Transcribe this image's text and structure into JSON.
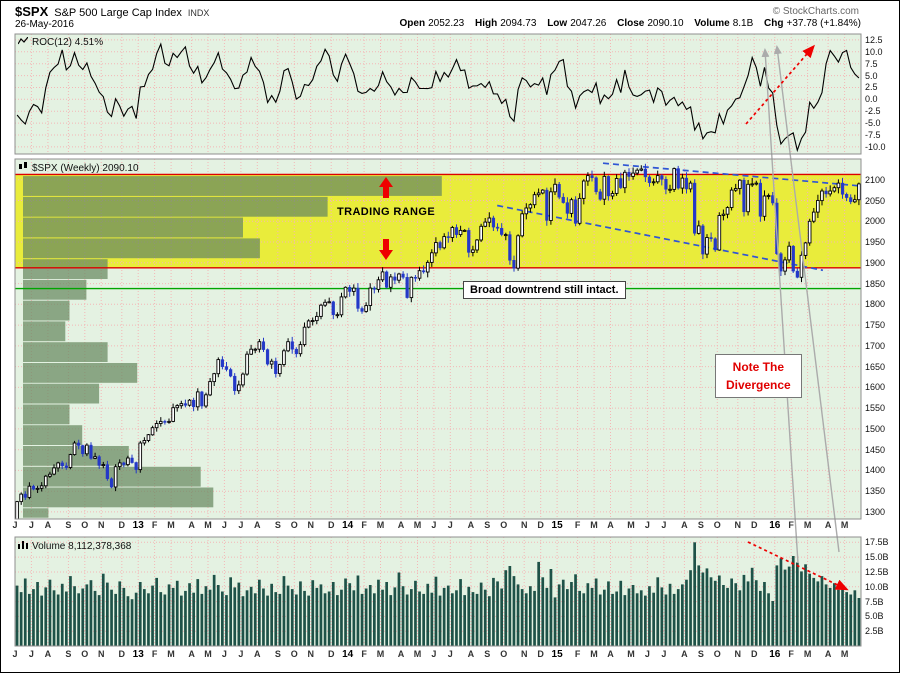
{
  "colors": {
    "panel_bg": "#e4f2e2",
    "grid": "#f4b6b6",
    "band_yellow": "#e9ec3b",
    "vbp": "rgba(102,136,96,0.72)",
    "candle_up_fill": "#ffffff",
    "candle_up_stroke": "#000000",
    "candle_down": "#2438c8",
    "volume_bar": "#1e5248",
    "roc_line": "#000000",
    "level_red": "#dd0000",
    "level_green": "#00a500",
    "trend_blue": "#2f55d4",
    "pointer_gray": "#ababab",
    "arrow_red": "#ee0000"
  },
  "header": {
    "symbol": "$SPX",
    "name": "S&P 500 Large Cap Index",
    "exchange": "INDX",
    "copyright": "© StockCharts.com",
    "date": "26-May-2016",
    "quote": [
      {
        "label": "Open",
        "value": "2052.23"
      },
      {
        "label": "High",
        "value": "2094.73"
      },
      {
        "label": "Low",
        "value": "2047.26"
      },
      {
        "label": "Close",
        "value": "2090.10"
      },
      {
        "label": "Volume",
        "value": "8.1B"
      },
      {
        "label": "Chg",
        "value": "+37.78 (+1.84%)"
      }
    ]
  },
  "roc_panel": {
    "label": "ROC(12) 4.51%",
    "ticks": [
      "12.5",
      "10.0",
      "7.5",
      "5.0",
      "2.5",
      "0.0",
      "-2.5",
      "-5.0",
      "-7.5",
      "-10.0"
    ]
  },
  "price_panel": {
    "label": "$SPX (Weekly) 2090.10",
    "ticks": [
      "2100",
      "2050",
      "2000",
      "1950",
      "1900",
      "1850",
      "1800",
      "1750",
      "1700",
      "1650",
      "1600",
      "1550",
      "1500",
      "1450",
      "1400",
      "1350",
      "1300"
    ]
  },
  "volume_panel": {
    "label": "Volume 8,112,378,368",
    "ticks": [
      "17.5B",
      "15.0B",
      "12.5B",
      "10.0B",
      "7.5B",
      "5.0B",
      "2.5B"
    ]
  },
  "x_axis": {
    "labels": [
      "J",
      "J",
      "A",
      "S",
      "O",
      "N",
      "D",
      "13",
      "F",
      "M",
      "A",
      "M",
      "J",
      "J",
      "A",
      "S",
      "O",
      "N",
      "D",
      "14",
      "F",
      "M",
      "A",
      "M",
      "J",
      "J",
      "A",
      "S",
      "O",
      "N",
      "D",
      "15",
      "F",
      "M",
      "A",
      "M",
      "J",
      "J",
      "A",
      "S",
      "O",
      "N",
      "D",
      "16",
      "F",
      "M",
      "A",
      "M"
    ],
    "year_indices": [
      7,
      19,
      31,
      43
    ]
  },
  "annotations": {
    "trading_range_label": "TRADING RANGE",
    "downtrend_note": "Broad downtrend still intact.",
    "divergence_note_line1": "Note The",
    "divergence_note_line2": "Divergence",
    "resistance_level": 2113,
    "support_level_red": 1888,
    "support_level_green": 1838
  },
  "chart_data": {
    "type": "candlestick",
    "timeframe": "weekly",
    "x_start": "Jun-2012",
    "x_end": "May-2016",
    "panels": [
      "ROC(12) momentum line",
      "weekly OHLC candles with volume-by-price overlay",
      "volume bars"
    ],
    "price_axis_range": [
      1283,
      2150
    ],
    "roc12_axis_range": [
      -11.5,
      13.75
    ],
    "volume_axis_range_billions": [
      0,
      18.4
    ],
    "roc_last": 4.51,
    "month_week_counts": [
      4,
      4,
      5,
      4,
      4,
      5,
      4,
      4,
      4,
      5,
      4,
      4,
      4,
      4,
      5,
      4,
      4,
      5,
      4,
      4,
      4,
      5,
      4,
      4,
      4,
      5,
      4,
      4,
      5,
      4,
      4,
      5,
      4,
      4,
      5,
      4,
      4,
      5,
      4,
      4,
      5,
      4,
      5,
      4,
      4,
      5,
      4,
      4
    ],
    "pre_window_closes": [
      1370,
      1404,
      1408,
      1397,
      1370,
      1378,
      1403,
      1353,
      1316,
      1318,
      1320,
      1278
    ],
    "weekly_closes": [
      1325,
      1343,
      1335,
      1362,
      1355,
      1357,
      1363,
      1386,
      1391,
      1406,
      1418,
      1411,
      1407,
      1438,
      1466,
      1460,
      1440,
      1461,
      1429,
      1433,
      1412,
      1414,
      1380,
      1360,
      1409,
      1418,
      1414,
      1430,
      1419,
      1402,
      1466,
      1472,
      1486,
      1503,
      1513,
      1518,
      1516,
      1518,
      1551,
      1556,
      1561,
      1557,
      1569,
      1553,
      1589,
      1555,
      1582,
      1614,
      1633,
      1667,
      1650,
      1643,
      1627,
      1592,
      1606,
      1632,
      1680,
      1692,
      1692,
      1710,
      1691,
      1656,
      1663,
      1633,
      1655,
      1688,
      1710,
      1692,
      1681,
      1703,
      1745,
      1760,
      1761,
      1771,
      1798,
      1805,
      1806,
      1775,
      1775,
      1818,
      1841,
      1831,
      1839,
      1790,
      1783,
      1797,
      1839,
      1836,
      1859,
      1878,
      1841,
      1866,
      1858,
      1873,
      1865,
      1816,
      1865,
      1863,
      1881,
      1878,
      1901,
      1924,
      1949,
      1936,
      1963,
      1961,
      1985,
      1968,
      1978,
      1978,
      1925,
      1931,
      1955,
      1988,
      1998,
      2008,
      1986,
      1983,
      1968,
      1968,
      1906,
      1887,
      1965,
      2018,
      2032,
      2040,
      2064,
      2068,
      2075,
      2002,
      2071,
      2089,
      2058,
      2045,
      2019,
      2052,
      1995,
      2055,
      2097,
      2110,
      2105,
      2071,
      2053,
      2108,
      2061,
      2067,
      2103,
      2081,
      2118,
      2108,
      2116,
      2123,
      2126,
      2107,
      2093,
      2095,
      2110,
      2101,
      2077,
      2077,
      2127,
      2080,
      2104,
      2078,
      2092,
      1971,
      1989,
      1921,
      1961,
      1958,
      1931,
      2014,
      2017,
      2033,
      2075,
      2079,
      2099,
      2023,
      2089,
      2090,
      2092,
      2012,
      2061,
      2062,
      2044,
      1922,
      1880,
      1907,
      1940,
      1880,
      1865,
      1918,
      1948,
      2000,
      2022,
      2050,
      2073,
      2066,
      2073,
      2081,
      2092,
      2065,
      2057,
      2047,
      2052,
      2090
    ],
    "weekly_volumes_billions": [
      10.2,
      9.1,
      11.4,
      8.8,
      9.6,
      10.8,
      8.5,
      9.9,
      11.2,
      9.4,
      8.7,
      10.5,
      9.2,
      11.8,
      10.1,
      8.9,
      9.7,
      10.4,
      11.1,
      9.3,
      8.6,
      12.2,
      10.7,
      9.5,
      8.8,
      10.9,
      9.8,
      8.4,
      7.9,
      9.0,
      10.8,
      9.6,
      8.9,
      10.2,
      11.5,
      9.1,
      8.7,
      10.4,
      9.8,
      11.0,
      8.5,
      9.3,
      10.6,
      9.0,
      11.3,
      8.8,
      10.1,
      9.5,
      12.0,
      10.3,
      9.2,
      8.6,
      11.6,
      9.9,
      10.7,
      8.4,
      9.4,
      10.0,
      8.9,
      11.2,
      9.7,
      8.5,
      10.5,
      9.1,
      8.8,
      11.8,
      10.2,
      9.6,
      8.7,
      10.9,
      9.3,
      8.5,
      11.1,
      9.8,
      10.4,
      8.9,
      9.2,
      10.8,
      8.6,
      9.5,
      11.4,
      10.6,
      9.4,
      11.9,
      8.8,
      9.7,
      10.3,
      8.9,
      11.2,
      9.5,
      10.8,
      8.6,
      9.9,
      12.4,
      10.1,
      8.7,
      9.6,
      11.0,
      9.2,
      8.8,
      10.5,
      9.0,
      11.7,
      8.5,
      9.8,
      10.2,
      8.9,
      9.4,
      11.3,
      8.6,
      10.0,
      9.1,
      8.8,
      10.7,
      9.5,
      8.4,
      11.5,
      10.9,
      9.7,
      12.8,
      13.5,
      11.8,
      10.4,
      9.6,
      8.9,
      10.1,
      9.3,
      14.2,
      11.6,
      9.8,
      13.0,
      8.2,
      10.4,
      11.2,
      9.6,
      10.8,
      12.1,
      9.3,
      8.9,
      10.6,
      9.8,
      11.4,
      8.7,
      9.5,
      10.9,
      8.8,
      9.2,
      11.0,
      8.6,
      9.7,
      10.3,
      8.9,
      9.4,
      8.5,
      10.1,
      9.0,
      11.6,
      9.9,
      8.7,
      10.5,
      8.8,
      9.6,
      10.4,
      11.2,
      12.8,
      17.5,
      13.6,
      12.4,
      13.1,
      11.6,
      11.0,
      11.9,
      10.3,
      9.8,
      11.4,
      10.6,
      9.4,
      12.0,
      10.9,
      13.2,
      11.1,
      9.3,
      10.8,
      8.9,
      7.6,
      13.6,
      14.8,
      12.9,
      13.4,
      15.2,
      14.1,
      12.6,
      13.8,
      12.2,
      11.5,
      10.9,
      11.8,
      10.4,
      9.8,
      10.6,
      9.5,
      10.2,
      9.1,
      8.7,
      9.4,
      8.1
    ],
    "volume_by_price": [
      {
        "low": 2060,
        "high": 2110,
        "frac": 0.495
      },
      {
        "low": 2010,
        "high": 2060,
        "frac": 0.36
      },
      {
        "low": 1960,
        "high": 2010,
        "frac": 0.26
      },
      {
        "low": 1910,
        "high": 1960,
        "frac": 0.28
      },
      {
        "low": 1860,
        "high": 1910,
        "frac": 0.1
      },
      {
        "low": 1810,
        "high": 1860,
        "frac": 0.075
      },
      {
        "low": 1760,
        "high": 1810,
        "frac": 0.055
      },
      {
        "low": 1710,
        "high": 1760,
        "frac": 0.05
      },
      {
        "low": 1660,
        "high": 1710,
        "frac": 0.1
      },
      {
        "low": 1610,
        "high": 1660,
        "frac": 0.135
      },
      {
        "low": 1560,
        "high": 1610,
        "frac": 0.09
      },
      {
        "low": 1510,
        "high": 1560,
        "frac": 0.055
      },
      {
        "low": 1460,
        "high": 1510,
        "frac": 0.07
      },
      {
        "low": 1410,
        "high": 1460,
        "frac": 0.125
      },
      {
        "low": 1360,
        "high": 1410,
        "frac": 0.21
      },
      {
        "low": 1310,
        "high": 1360,
        "frac": 0.225
      },
      {
        "low": 1285,
        "high": 1310,
        "frac": 0.03
      }
    ],
    "trendlines_blue_dashed": [
      {
        "x1f": 0.695,
        "p1": 2140,
        "x2f": 1.0,
        "p2": 2085
      },
      {
        "x1f": 0.57,
        "p1": 2038,
        "x2f": 0.955,
        "p2": 1882
      }
    ]
  }
}
